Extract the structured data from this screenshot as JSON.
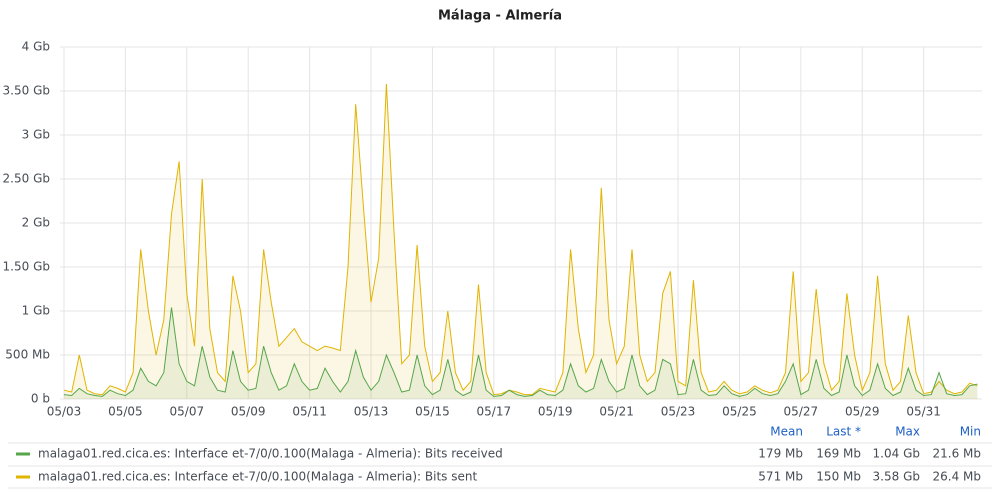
{
  "chart_data": {
    "type": "line",
    "title": "Málaga - Almería",
    "grid": true,
    "xlim": [
      2.87,
      32.9
    ],
    "xticks": [
      {
        "value": 3,
        "label": "05/03"
      },
      {
        "value": 5,
        "label": "05/05"
      },
      {
        "value": 7,
        "label": "05/07"
      },
      {
        "value": 9,
        "label": "05/09"
      },
      {
        "value": 11,
        "label": "05/11"
      },
      {
        "value": 13,
        "label": "05/13"
      },
      {
        "value": 15,
        "label": "05/15"
      },
      {
        "value": 17,
        "label": "05/17"
      },
      {
        "value": 19,
        "label": "05/19"
      },
      {
        "value": 21,
        "label": "05/21"
      },
      {
        "value": 23,
        "label": "05/23"
      },
      {
        "value": 25,
        "label": "05/25"
      },
      {
        "value": 27,
        "label": "05/27"
      },
      {
        "value": 29,
        "label": "05/29"
      },
      {
        "value": 31,
        "label": "05/31"
      }
    ],
    "ylim": [
      0,
      4
    ],
    "yticks": [
      {
        "value": 0,
        "label": "0 b"
      },
      {
        "value": 0.5,
        "label": "500 Mb"
      },
      {
        "value": 1,
        "label": "1 Gb"
      },
      {
        "value": 1.5,
        "label": "1.50 Gb"
      },
      {
        "value": 2,
        "label": "2 Gb"
      },
      {
        "value": 2.5,
        "label": "2.50 Gb"
      },
      {
        "value": 3,
        "label": "3 Gb"
      },
      {
        "value": 3.5,
        "label": "3.50 Gb"
      },
      {
        "value": 4,
        "label": "4 Gb"
      }
    ],
    "legend_columns": [
      "Mean",
      "Last *",
      "Max",
      "Min"
    ],
    "x": [
      3,
      3.25,
      3.5,
      3.75,
      4,
      4.25,
      4.5,
      4.75,
      5,
      5.25,
      5.5,
      5.75,
      6,
      6.25,
      6.5,
      6.75,
      7,
      7.25,
      7.5,
      7.75,
      8,
      8.25,
      8.5,
      8.75,
      9,
      9.25,
      9.5,
      9.75,
      10,
      10.25,
      10.5,
      10.75,
      11,
      11.25,
      11.5,
      11.75,
      12,
      12.25,
      12.5,
      12.75,
      13,
      13.25,
      13.5,
      13.75,
      14,
      14.25,
      14.5,
      14.75,
      15,
      15.25,
      15.5,
      15.75,
      16,
      16.25,
      16.5,
      16.75,
      17,
      17.25,
      17.5,
      17.75,
      18,
      18.25,
      18.5,
      18.75,
      19,
      19.25,
      19.5,
      19.75,
      20,
      20.25,
      20.5,
      20.75,
      21,
      21.25,
      21.5,
      21.75,
      22,
      22.25,
      22.5,
      22.75,
      23,
      23.25,
      23.5,
      23.75,
      24,
      24.25,
      24.5,
      24.75,
      25,
      25.25,
      25.5,
      25.75,
      26,
      26.25,
      26.5,
      26.75,
      27,
      27.25,
      27.5,
      27.75,
      28,
      28.25,
      28.5,
      28.75,
      29,
      29.25,
      29.5,
      29.75,
      30,
      30.25,
      30.5,
      30.75,
      31,
      31.25,
      31.5,
      31.75,
      32,
      32.25,
      32.5,
      32.75
    ],
    "series": [
      {
        "name": "malaga01.red.cica.es: Interface et-7/0/0.100(Malaga - Almeria): Bits sent",
        "color": "#e0b400",
        "stats": [
          "571 Mb",
          "150 Mb",
          "3.58 Gb",
          "26.4 Mb"
        ],
        "values": [
          0.1,
          0.08,
          0.5,
          0.1,
          0.06,
          0.05,
          0.15,
          0.12,
          0.08,
          0.3,
          1.7,
          1.0,
          0.5,
          0.9,
          2.1,
          2.7,
          1.2,
          0.6,
          2.5,
          0.8,
          0.3,
          0.2,
          1.4,
          1.0,
          0.3,
          0.4,
          1.7,
          1.1,
          0.6,
          0.7,
          0.8,
          0.65,
          0.6,
          0.55,
          0.6,
          0.58,
          0.55,
          1.5,
          3.35,
          2.2,
          1.1,
          1.6,
          3.58,
          1.9,
          0.4,
          0.5,
          1.75,
          0.6,
          0.2,
          0.3,
          1.0,
          0.3,
          0.1,
          0.2,
          1.3,
          0.3,
          0.05,
          0.06,
          0.1,
          0.08,
          0.05,
          0.05,
          0.12,
          0.1,
          0.08,
          0.3,
          1.7,
          0.8,
          0.3,
          0.5,
          2.4,
          0.9,
          0.4,
          0.6,
          1.7,
          0.5,
          0.2,
          0.3,
          1.2,
          1.45,
          0.2,
          0.15,
          1.35,
          0.3,
          0.08,
          0.1,
          0.2,
          0.1,
          0.06,
          0.08,
          0.15,
          0.1,
          0.07,
          0.1,
          0.3,
          1.45,
          0.2,
          0.3,
          1.25,
          0.4,
          0.1,
          0.2,
          1.2,
          0.5,
          0.1,
          0.3,
          1.4,
          0.4,
          0.1,
          0.2,
          0.95,
          0.3,
          0.06,
          0.08,
          0.2,
          0.1,
          0.06,
          0.08,
          0.18,
          0.15
        ]
      },
      {
        "name": "malaga01.red.cica.es: Interface et-7/0/0.100(Malaga - Almeria): Bits received",
        "color": "#56a64b",
        "stats": [
          "179 Mb",
          "169 Mb",
          "1.04 Gb",
          "21.6 Mb"
        ],
        "values": [
          0.05,
          0.04,
          0.12,
          0.06,
          0.04,
          0.03,
          0.1,
          0.06,
          0.04,
          0.1,
          0.35,
          0.2,
          0.15,
          0.3,
          1.04,
          0.4,
          0.2,
          0.15,
          0.6,
          0.25,
          0.1,
          0.08,
          0.55,
          0.2,
          0.1,
          0.12,
          0.6,
          0.3,
          0.1,
          0.15,
          0.4,
          0.2,
          0.1,
          0.12,
          0.35,
          0.2,
          0.08,
          0.2,
          0.55,
          0.25,
          0.1,
          0.2,
          0.5,
          0.3,
          0.08,
          0.1,
          0.5,
          0.15,
          0.05,
          0.1,
          0.45,
          0.1,
          0.04,
          0.08,
          0.5,
          0.1,
          0.03,
          0.04,
          0.1,
          0.05,
          0.03,
          0.04,
          0.1,
          0.05,
          0.04,
          0.1,
          0.4,
          0.15,
          0.08,
          0.12,
          0.45,
          0.2,
          0.08,
          0.12,
          0.5,
          0.15,
          0.05,
          0.1,
          0.45,
          0.4,
          0.05,
          0.06,
          0.45,
          0.1,
          0.04,
          0.05,
          0.15,
          0.06,
          0.03,
          0.05,
          0.12,
          0.06,
          0.04,
          0.06,
          0.2,
          0.4,
          0.05,
          0.1,
          0.45,
          0.12,
          0.04,
          0.08,
          0.5,
          0.15,
          0.04,
          0.1,
          0.4,
          0.12,
          0.04,
          0.08,
          0.35,
          0.1,
          0.04,
          0.05,
          0.3,
          0.06,
          0.04,
          0.05,
          0.15,
          0.169
        ]
      }
    ]
  }
}
